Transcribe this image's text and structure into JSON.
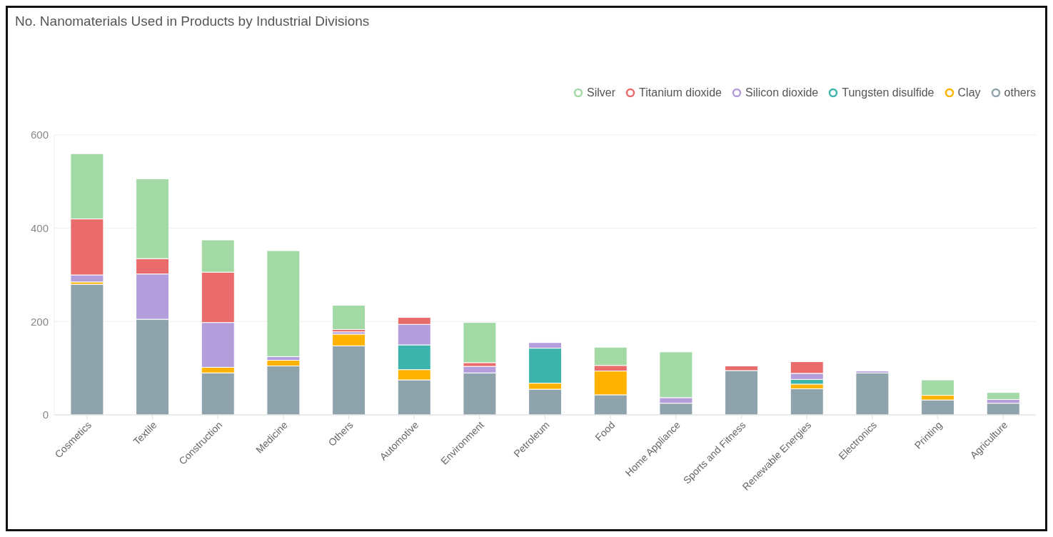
{
  "chart_data": {
    "type": "bar",
    "title": "No. Nanomaterials Used in Products by Industrial Divisions",
    "categories": [
      "Cosmetics",
      "Textile",
      "Construction",
      "Medicine",
      "Others",
      "Automotive",
      "Environment",
      "Petroleum",
      "Food",
      "Home Appliance",
      "Sports and Fitness",
      "Renewable Energies",
      "Electronics",
      "Printing",
      "Agriculture"
    ],
    "stacked": true,
    "ylim": [
      0,
      600
    ],
    "yticks": [
      0,
      200,
      400,
      600
    ],
    "grid": "y",
    "legend": "top right",
    "marker": "circle",
    "series": [
      {
        "name": "others",
        "color": "#8fa3ad",
        "values": [
          280,
          205,
          90,
          105,
          148,
          75,
          90,
          55,
          43,
          25,
          95,
          56,
          90,
          32,
          25
        ]
      },
      {
        "name": "Clay",
        "color": "#ffb300",
        "values": [
          5,
          0,
          12,
          12,
          25,
          22,
          0,
          13,
          51,
          0,
          0,
          10,
          0,
          10,
          0
        ]
      },
      {
        "name": "Tungsten disulfide",
        "color": "#3cb4ac",
        "values": [
          0,
          0,
          0,
          0,
          0,
          53,
          0,
          75,
          0,
          0,
          0,
          10,
          0,
          0,
          0
        ]
      },
      {
        "name": "Silicon dioxide",
        "color": "#b39ddb",
        "values": [
          15,
          97,
          96,
          8,
          5,
          44,
          14,
          12,
          0,
          12,
          0,
          13,
          4,
          0,
          8
        ]
      },
      {
        "name": "Titanium dioxide",
        "color": "#e96b6b",
        "values": [
          120,
          33,
          108,
          0,
          5,
          15,
          8,
          0,
          12,
          0,
          10,
          25,
          0,
          0,
          0
        ]
      },
      {
        "name": "Silver",
        "color": "#a3d9a5",
        "values": [
          140,
          171,
          69,
          227,
          52,
          0,
          86,
          0,
          39,
          98,
          0,
          0,
          0,
          33,
          15
        ]
      }
    ]
  }
}
